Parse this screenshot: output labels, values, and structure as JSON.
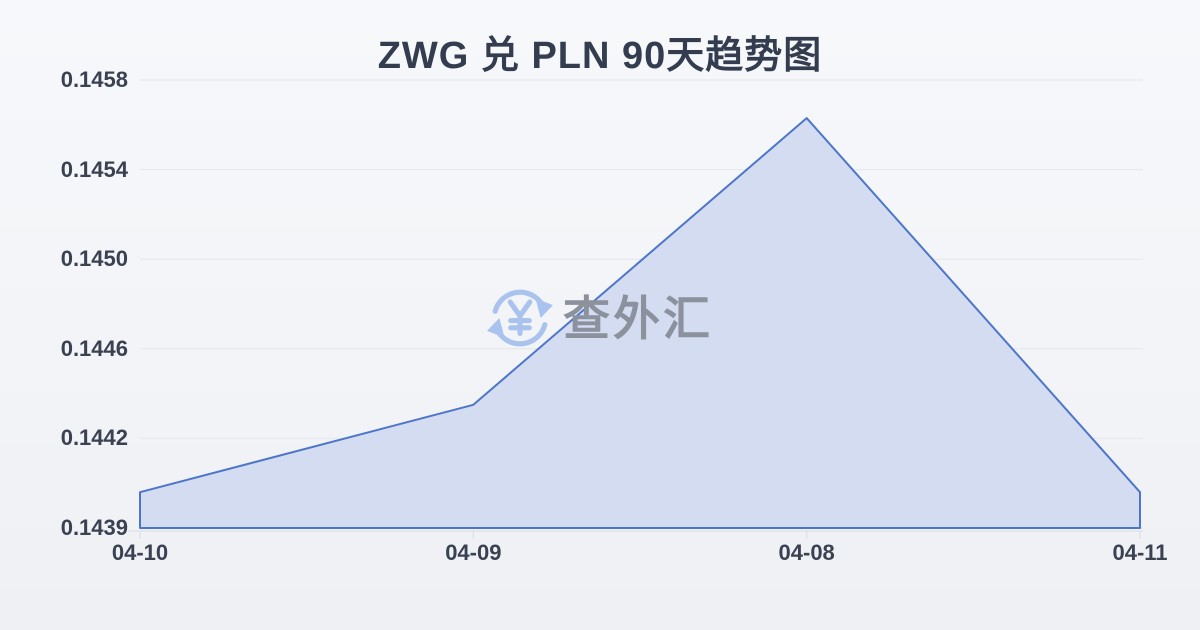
{
  "chart_data": {
    "type": "area",
    "title": "ZWG 兑 PLN 90天趋势图",
    "x": [
      "04-10",
      "04-09",
      "04-08",
      "04-11"
    ],
    "values": [
      0.14402,
      0.14435,
      0.14563,
      0.14402
    ],
    "xlabel": "",
    "ylabel": "",
    "y_ticks": [
      0.1458,
      0.1454,
      0.145,
      0.1446,
      0.1442,
      0.1439
    ],
    "y_tick_labels": [
      "0.1458",
      "0.1454",
      "0.1450",
      "0.1446",
      "0.1442",
      "0.1439"
    ],
    "ylim": [
      0.1439,
      0.1458
    ],
    "grid": true,
    "legend_position": "none",
    "line_color": "#4d76cb",
    "fill_color": "#d4dcf2",
    "gridline_color": "#e3e6ea",
    "axis_line_color": "#d9dce1",
    "label_color": "#3a4252",
    "title_color": "#333d4f",
    "background_color": "#f2f4f7"
  },
  "watermark": {
    "text": "查外汇",
    "icon": "currency-exchange-icon",
    "icon_color": "#a9c2ee",
    "text_color": "#8b919d"
  }
}
